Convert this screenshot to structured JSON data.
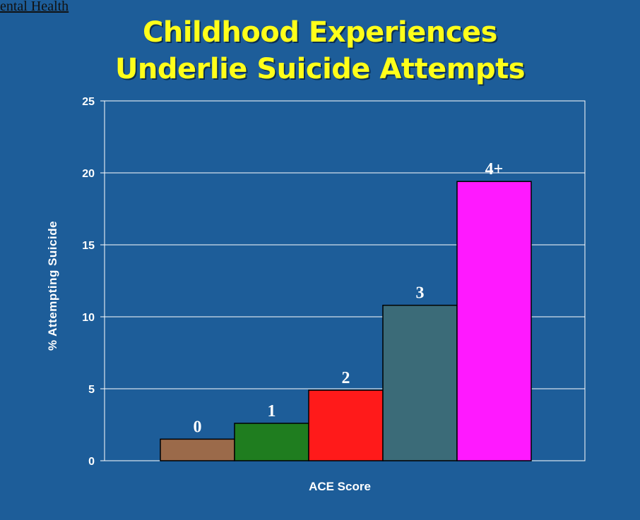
{
  "header": {
    "link_text": "ental Health"
  },
  "chart_data": {
    "type": "bar",
    "title_lines": [
      "Childhood Experiences",
      "Underlie Suicide Attempts"
    ],
    "xlabel": "ACE Score",
    "ylabel": "% Attempting Suicide",
    "categories": [
      "0",
      "1",
      "2",
      "3",
      "4+"
    ],
    "values": [
      1.5,
      2.6,
      4.9,
      10.8,
      19.4
    ],
    "data_labels": [
      "0",
      "1",
      "2",
      "3",
      "4+"
    ],
    "colors": [
      "#9b6a4a",
      "#1f7d1f",
      "#ff1a1a",
      "#3b6b78",
      "#ff19ff"
    ],
    "ylim": [
      0,
      25
    ],
    "yticks": [
      0,
      5,
      10,
      15,
      20,
      25
    ],
    "grid": true,
    "legend": "none"
  }
}
